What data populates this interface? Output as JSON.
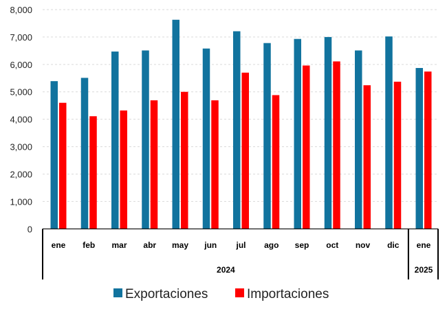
{
  "chart_data": {
    "type": "bar",
    "title": "",
    "xlabel": "",
    "ylabel": "",
    "ylim": [
      0,
      8000
    ],
    "yticks": [
      "0",
      "1,000",
      "2,000",
      "3,000",
      "4,000",
      "5,000",
      "6,000",
      "7,000",
      "8,000"
    ],
    "grid": true,
    "categories": [
      "ene",
      "feb",
      "mar",
      "abr",
      "may",
      "jun",
      "jul",
      "ago",
      "sep",
      "oct",
      "nov",
      "dic",
      "ene"
    ],
    "year_groups": [
      {
        "label": "2024",
        "count": 12
      },
      {
        "label": "2025",
        "count": 1
      }
    ],
    "series": [
      {
        "name": "Exportaciones",
        "color": "#11739e",
        "values": [
          5390,
          5510,
          6470,
          6510,
          7630,
          6580,
          7210,
          6780,
          6930,
          7000,
          6510,
          7020,
          5870
        ]
      },
      {
        "name": "Importaciones",
        "color": "#ff0000",
        "values": [
          4600,
          4110,
          4320,
          4690,
          5000,
          4690,
          5700,
          4880,
          5960,
          6110,
          5240,
          5370,
          5740
        ]
      }
    ],
    "legend_position": "bottom"
  }
}
